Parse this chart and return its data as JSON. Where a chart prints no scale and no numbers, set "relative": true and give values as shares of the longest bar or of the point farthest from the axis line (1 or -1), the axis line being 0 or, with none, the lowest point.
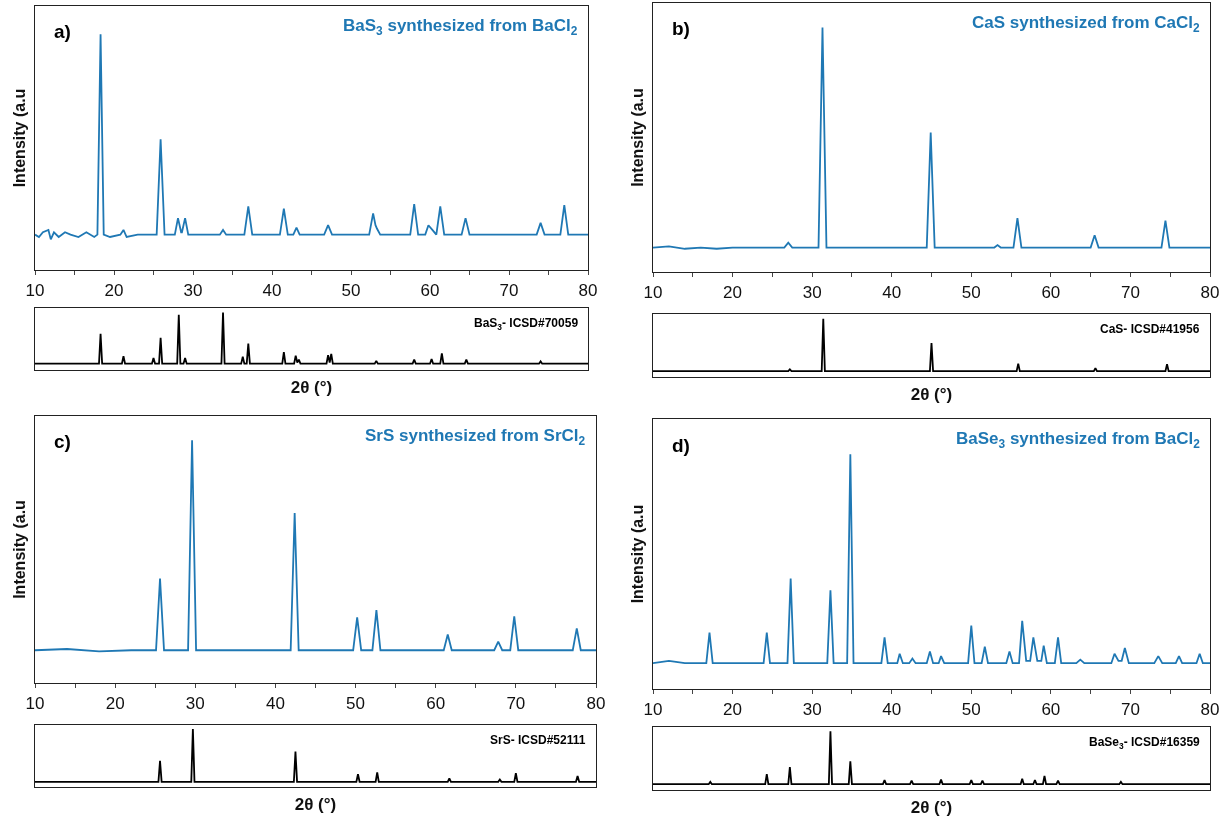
{
  "chart_data": [
    {
      "type": "line",
      "relative": true,
      "xlim": [
        10,
        80
      ],
      "xticks": [
        10,
        {
          "value": 15,
          "label": null
        },
        20,
        {
          "value": 25,
          "label": null
        },
        30,
        {
          "value": 35,
          "label": null
        },
        40,
        {
          "value": 45,
          "label": null
        },
        50,
        {
          "value": 55,
          "label": null
        },
        60,
        {
          "value": 65,
          "label": null
        },
        70,
        {
          "value": 75,
          "label": null
        },
        80
      ],
      "tick_labels": "x",
      "ylabel": "Intensity (a.u",
      "annotations": [
        "a)"
      ],
      "series": [
        {
          "name": "BaS$_{3}$ synthesized from BaCl$_{2}$",
          "color": "#1f78b4",
          "x": [
            10,
            10.5,
            11,
            11.7,
            12,
            12.4,
            13,
            13.8,
            14.5,
            15.5,
            16.5,
            17.5,
            17.9,
            18.3,
            18.7,
            19.5,
            20.8,
            21.2,
            21.6,
            23,
            25.4,
            25.9,
            26.4,
            27.7,
            28.1,
            28.5,
            28.6,
            29.0,
            29.4,
            31,
            33.4,
            33.8,
            34.2,
            36.5,
            37.0,
            37.5,
            41.0,
            41.5,
            42.0,
            42.7,
            43.1,
            43.5,
            46.6,
            47.1,
            47.6,
            52.3,
            52.8,
            53.1,
            53.3,
            53.7,
            57.5,
            58.0,
            58.5,
            59.4,
            59.8,
            60.3,
            60.8,
            61.3,
            61.8,
            64.0,
            64.5,
            65.0,
            73.5,
            74.0,
            74.5,
            76.5,
            77.0,
            77.5,
            80
          ],
          "values": [
            0.15,
            0.14,
            0.16,
            0.17,
            0.13,
            0.16,
            0.14,
            0.16,
            0.15,
            0.14,
            0.16,
            0.14,
            0.15,
            1.0,
            0.15,
            0.14,
            0.15,
            0.17,
            0.14,
            0.15,
            0.15,
            0.555,
            0.15,
            0.15,
            0.22,
            0.16,
            0.16,
            0.22,
            0.15,
            0.15,
            0.15,
            0.17,
            0.15,
            0.15,
            0.27,
            0.15,
            0.15,
            0.26,
            0.15,
            0.15,
            0.18,
            0.15,
            0.15,
            0.19,
            0.15,
            0.15,
            0.24,
            0.19,
            0.175,
            0.15,
            0.15,
            0.28,
            0.15,
            0.15,
            0.19,
            0.17,
            0.15,
            0.27,
            0.15,
            0.15,
            0.22,
            0.15,
            0.15,
            0.2,
            0.15,
            0.15,
            0.275,
            0.15,
            0.15
          ]
        }
      ]
    },
    {
      "type": "line",
      "relative": true,
      "xlim": [
        10,
        80
      ],
      "tick_labels": false,
      "xlabel": "2θ (°)",
      "series": [
        {
          "name": "BaS$_{3}$- ICSD#70059",
          "color": "#000000",
          "x": [
            10,
            18.1,
            18.3,
            18.5,
            21.0,
            21.2,
            21.4,
            24.8,
            25.0,
            25.2,
            25.7,
            25.9,
            26.1,
            28.0,
            28.2,
            28.4,
            28.8,
            29.0,
            29.2,
            33.6,
            33.8,
            34.0,
            36.1,
            36.3,
            36.5,
            36.8,
            37.0,
            37.2,
            41.3,
            41.5,
            41.7,
            42.8,
            43.0,
            43.2,
            43.4,
            43.6,
            46.9,
            47.1,
            47.3,
            47.5,
            47.7,
            53.0,
            53.2,
            53.4,
            57.8,
            58.0,
            58.2,
            60.0,
            60.2,
            60.4,
            61.3,
            61.5,
            61.7,
            64.4,
            64.6,
            64.8,
            73.8,
            74.0,
            74.2,
            80
          ],
          "values": [
            0.11,
            0.11,
            0.63,
            0.11,
            0.11,
            0.24,
            0.11,
            0.11,
            0.21,
            0.11,
            0.11,
            0.56,
            0.11,
            0.11,
            0.96,
            0.11,
            0.11,
            0.21,
            0.11,
            0.11,
            1.0,
            0.11,
            0.11,
            0.23,
            0.11,
            0.11,
            0.46,
            0.11,
            0.11,
            0.31,
            0.11,
            0.11,
            0.25,
            0.13,
            0.18,
            0.11,
            0.11,
            0.26,
            0.13,
            0.28,
            0.11,
            0.11,
            0.16,
            0.11,
            0.11,
            0.18,
            0.11,
            0.11,
            0.19,
            0.11,
            0.11,
            0.29,
            0.11,
            0.11,
            0.18,
            0.11,
            0.11,
            0.15,
            0.11,
            0.11
          ]
        }
      ]
    },
    {
      "type": "line",
      "relative": true,
      "xlim": [
        10,
        80
      ],
      "xticks": [
        10,
        {
          "value": 15,
          "label": null
        },
        20,
        {
          "value": 25,
          "label": null
        },
        30,
        {
          "value": 35,
          "label": null
        },
        40,
        {
          "value": 45,
          "label": null
        },
        50,
        {
          "value": 55,
          "label": null
        },
        60,
        {
          "value": 65,
          "label": null
        },
        70,
        {
          "value": 75,
          "label": null
        },
        80
      ],
      "tick_labels": "x",
      "ylabel": "Intensity (a.u",
      "annotations": [
        "b)"
      ],
      "series": [
        {
          "name": "CaS synthesized from CaCl$_{2}$",
          "color": "#1f78b4",
          "x": [
            10,
            12,
            14,
            16,
            18,
            20,
            22,
            24,
            26.5,
            27.0,
            27.5,
            30.8,
            31.3,
            31.8,
            44.4,
            44.9,
            45.4,
            52.9,
            53.3,
            53.7,
            55.3,
            55.8,
            56.3,
            65.0,
            65.5,
            66.0,
            73.9,
            74.4,
            74.9,
            80
          ],
          "values": [
            0.1,
            0.105,
            0.095,
            0.1,
            0.095,
            0.1,
            0.1,
            0.1,
            0.1,
            0.12,
            0.1,
            0.1,
            1.0,
            0.1,
            0.1,
            0.57,
            0.1,
            0.1,
            0.11,
            0.1,
            0.1,
            0.22,
            0.1,
            0.1,
            0.15,
            0.1,
            0.1,
            0.21,
            0.1,
            0.1
          ]
        }
      ]
    },
    {
      "type": "line",
      "relative": true,
      "xlim": [
        10,
        80
      ],
      "tick_labels": false,
      "xlabel": "2θ (°)",
      "series": [
        {
          "name": "CaS- ICSD#41956",
          "color": "#000000",
          "x": [
            10,
            27.0,
            27.2,
            27.4,
            31.2,
            31.4,
            31.6,
            44.8,
            45.0,
            45.2,
            55.7,
            55.9,
            56.1,
            65.4,
            65.6,
            65.8,
            74.4,
            74.6,
            74.8,
            80
          ],
          "values": [
            0.1,
            0.1,
            0.13,
            0.1,
            0.1,
            1.0,
            0.1,
            0.1,
            0.58,
            0.1,
            0.1,
            0.23,
            0.1,
            0.1,
            0.15,
            0.1,
            0.1,
            0.22,
            0.1,
            0.1
          ]
        }
      ]
    },
    {
      "type": "line",
      "relative": true,
      "xlim": [
        10,
        80
      ],
      "xticks": [
        10,
        {
          "value": 15,
          "label": null
        },
        20,
        {
          "value": 25,
          "label": null
        },
        30,
        {
          "value": 35,
          "label": null
        },
        40,
        {
          "value": 45,
          "label": null
        },
        50,
        {
          "value": 55,
          "label": null
        },
        60,
        {
          "value": 65,
          "label": null
        },
        70,
        {
          "value": 75,
          "label": null
        },
        80
      ],
      "tick_labels": "x",
      "ylabel": "Intensity (a.u",
      "annotations": [
        "c)"
      ],
      "series": [
        {
          "name": "SrS synthesized from SrCl$_{2}$",
          "color": "#1f78b4",
          "x": [
            10,
            14,
            18,
            22,
            25.1,
            25.6,
            26.1,
            29.1,
            29.6,
            30.1,
            41.9,
            42.4,
            42.9,
            49.7,
            50.2,
            50.7,
            52.1,
            52.6,
            53.1,
            61.0,
            61.5,
            62.0,
            67.3,
            67.8,
            68.3,
            69.3,
            69.8,
            70.3,
            77.1,
            77.6,
            78.1,
            80
          ],
          "values": [
            0.135,
            0.14,
            0.13,
            0.135,
            0.135,
            0.43,
            0.135,
            0.135,
            1.0,
            0.135,
            0.135,
            0.7,
            0.135,
            0.135,
            0.27,
            0.135,
            0.135,
            0.3,
            0.135,
            0.135,
            0.2,
            0.135,
            0.135,
            0.17,
            0.135,
            0.135,
            0.275,
            0.135,
            0.135,
            0.225,
            0.135,
            0.135
          ]
        }
      ]
    },
    {
      "type": "line",
      "relative": true,
      "xlim": [
        10,
        80
      ],
      "tick_labels": false,
      "xlabel": "2θ (°)",
      "series": [
        {
          "name": "SrS- ICSD#52111",
          "color": "#000000",
          "x": [
            10,
            25.4,
            25.6,
            25.8,
            29.5,
            29.7,
            29.9,
            42.3,
            42.5,
            42.7,
            50.1,
            50.3,
            50.5,
            52.5,
            52.7,
            52.9,
            61.5,
            61.7,
            61.9,
            67.8,
            68.0,
            68.2,
            69.8,
            70.0,
            70.2,
            77.5,
            77.7,
            77.9,
            80
          ],
          "values": [
            0.09,
            0.09,
            0.45,
            0.09,
            0.09,
            1.0,
            0.09,
            0.09,
            0.61,
            0.09,
            0.09,
            0.22,
            0.09,
            0.09,
            0.25,
            0.09,
            0.09,
            0.15,
            0.09,
            0.09,
            0.13,
            0.09,
            0.09,
            0.24,
            0.09,
            0.09,
            0.19,
            0.09,
            0.09
          ]
        }
      ]
    },
    {
      "type": "line",
      "relative": true,
      "xlim": [
        10,
        80
      ],
      "xticks": [
        10,
        {
          "value": 15,
          "label": null
        },
        20,
        {
          "value": 25,
          "label": null
        },
        30,
        {
          "value": 35,
          "label": null
        },
        40,
        {
          "value": 45,
          "label": null
        },
        50,
        {
          "value": 55,
          "label": null
        },
        60,
        {
          "value": 65,
          "label": null
        },
        70,
        {
          "value": 75,
          "label": null
        },
        80
      ],
      "tick_labels": "x",
      "ylabel": "Intensity (a.u",
      "annotations": [
        "d)"
      ],
      "series": [
        {
          "name": "BaSe$_{3}$ synthesized from BaCl$_{2}$",
          "color": "#1f78b4",
          "x": [
            10,
            12,
            14,
            16.7,
            17.1,
            17.5,
            20,
            23.9,
            24.3,
            24.7,
            26.9,
            27.3,
            27.7,
            31.9,
            32.3,
            32.7,
            34.4,
            34.8,
            35.2,
            38.7,
            39.1,
            39.5,
            40.7,
            41.0,
            41.4,
            42.2,
            42.6,
            43.0,
            44.4,
            44.8,
            45.2,
            45.9,
            46.2,
            46.6,
            49.6,
            50.0,
            50.4,
            51.3,
            51.7,
            52.1,
            54.4,
            54.8,
            55.2,
            56.0,
            56.4,
            56.9,
            57.4,
            57.8,
            58.3,
            58.8,
            59.1,
            59.5,
            60.5,
            60.9,
            61.3,
            63.2,
            63.7,
            64.2,
            67.6,
            68.0,
            68.5,
            68.9,
            69.3,
            69.8,
            73.0,
            73.5,
            74.0,
            75.7,
            76.1,
            76.5,
            78.3,
            78.7,
            79.1,
            80
          ],
          "values": [
            0.11,
            0.12,
            0.11,
            0.11,
            0.24,
            0.11,
            0.11,
            0.11,
            0.24,
            0.11,
            0.11,
            0.47,
            0.11,
            0.11,
            0.42,
            0.11,
            0.11,
            1.0,
            0.11,
            0.11,
            0.22,
            0.11,
            0.11,
            0.15,
            0.11,
            0.11,
            0.13,
            0.11,
            0.11,
            0.16,
            0.11,
            0.11,
            0.14,
            0.11,
            0.11,
            0.27,
            0.11,
            0.11,
            0.18,
            0.11,
            0.11,
            0.16,
            0.11,
            0.11,
            0.29,
            0.12,
            0.12,
            0.22,
            0.12,
            0.12,
            0.185,
            0.11,
            0.11,
            0.22,
            0.11,
            0.11,
            0.125,
            0.11,
            0.11,
            0.15,
            0.12,
            0.12,
            0.175,
            0.11,
            0.11,
            0.14,
            0.11,
            0.11,
            0.14,
            0.11,
            0.11,
            0.15,
            0.11,
            0.11
          ]
        }
      ]
    },
    {
      "type": "line",
      "relative": true,
      "xlim": [
        10,
        80
      ],
      "tick_labels": false,
      "xlabel": "2θ (°)",
      "series": [
        {
          "name": "BaSe$_{3}$- ICSD#16359",
          "color": "#000000",
          "x": [
            10,
            17.0,
            17.2,
            17.4,
            24.1,
            24.3,
            24.5,
            27.0,
            27.2,
            27.4,
            32.1,
            32.3,
            32.5,
            34.6,
            34.8,
            35.0,
            38.9,
            39.1,
            39.3,
            42.3,
            42.5,
            42.7,
            46.0,
            46.2,
            46.4,
            49.8,
            50.0,
            50.2,
            51.2,
            51.4,
            51.6,
            56.2,
            56.4,
            56.6,
            57.8,
            58.0,
            58.2,
            59.0,
            59.2,
            59.4,
            60.7,
            60.9,
            61.1,
            68.6,
            68.8,
            69.0,
            80
          ],
          "values": [
            0.1,
            0.1,
            0.14,
            0.1,
            0.1,
            0.27,
            0.1,
            0.1,
            0.39,
            0.1,
            0.1,
            1.0,
            0.1,
            0.1,
            0.49,
            0.1,
            0.1,
            0.17,
            0.1,
            0.1,
            0.16,
            0.1,
            0.1,
            0.18,
            0.1,
            0.1,
            0.17,
            0.1,
            0.1,
            0.16,
            0.1,
            0.1,
            0.19,
            0.1,
            0.1,
            0.17,
            0.1,
            0.1,
            0.24,
            0.1,
            0.1,
            0.16,
            0.1,
            0.1,
            0.14,
            0.1,
            0.1
          ]
        }
      ]
    }
  ]
}
